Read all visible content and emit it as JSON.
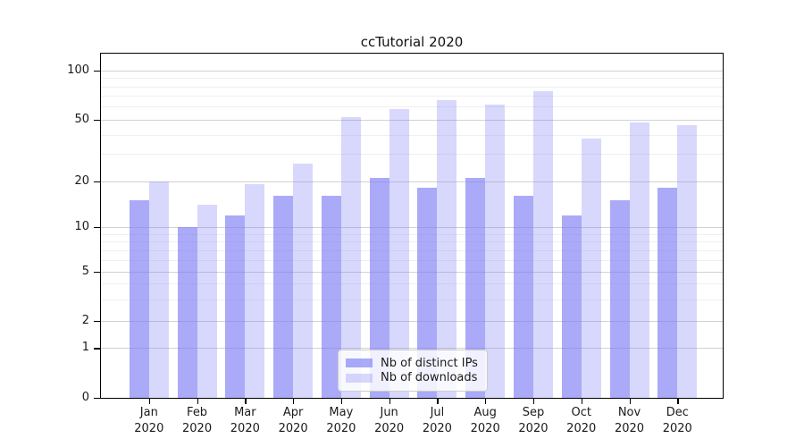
{
  "title": "ccTutorial 2020",
  "chart_data": {
    "type": "bar",
    "title": "ccTutorial 2020",
    "categories": [
      "Jan",
      "Feb",
      "Mar",
      "Apr",
      "May",
      "Jun",
      "Jul",
      "Aug",
      "Sep",
      "Oct",
      "Nov",
      "Dec"
    ],
    "category_year": "2020",
    "series": [
      {
        "name": "Nb of distinct IPs",
        "color": "rgba(125,125,245,0.65)",
        "values": [
          15,
          10,
          12,
          16,
          16,
          21,
          18,
          21,
          16,
          12,
          15,
          18
        ]
      },
      {
        "name": "Nb of downloads",
        "color": "rgba(125,125,245,0.30)",
        "values": [
          20,
          14,
          19,
          26,
          52,
          58,
          66,
          62,
          75,
          38,
          48,
          46
        ]
      }
    ],
    "xlabel": "",
    "ylabel": "",
    "yscale": "symlog",
    "y_ticks": [
      100,
      50,
      20,
      10,
      5,
      2,
      1,
      0
    ],
    "ylim": [
      0,
      120
    ],
    "grid": true,
    "legend_position": "bottom-center"
  }
}
